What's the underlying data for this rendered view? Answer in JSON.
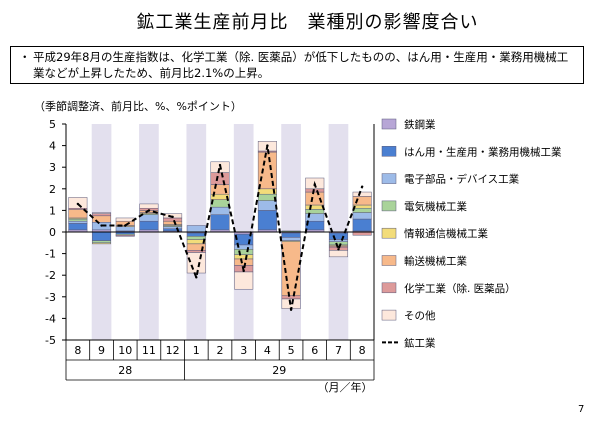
{
  "title": "鉱工業生産前月比　業種別の影響度合い",
  "summary": {
    "bullet": "・",
    "text": "平成29年8月の生産指数は、化学工業（除. 医薬品）が低下したものの、はん用・生産用・業務用機械工業などが上昇したため、前月比2.1%の上昇。"
  },
  "unit_label": "（季節調整済、前月比、%、%ポイント）",
  "page_number": "7",
  "chart_data": {
    "type": "bar",
    "stacked": true,
    "categories": [
      "8",
      "9",
      "10",
      "11",
      "12",
      "1",
      "2",
      "3",
      "4",
      "5",
      "6",
      "7",
      "8"
    ],
    "year_labels": [
      {
        "label": "28",
        "from": 0,
        "to": 4
      },
      {
        "label": "29",
        "from": 5,
        "to": 12
      }
    ],
    "x_unit_label": "（月／年）",
    "ylim": [
      -5,
      5
    ],
    "yticks": [
      5,
      4,
      3,
      2,
      1,
      0,
      -1,
      -2,
      -3,
      -4,
      -5
    ],
    "shaded_columns": [
      1,
      3,
      5,
      7,
      9,
      11
    ],
    "series": [
      {
        "name": "鉄鋼業",
        "color": "#b7a6d6",
        "values": [
          0.1,
          0.1,
          0.05,
          0.1,
          0.05,
          -0.05,
          0.1,
          -0.1,
          0.1,
          -0.05,
          0.1,
          -0.05,
          0.05
        ]
      },
      {
        "name": "はん用・生産用・業務用機械工業",
        "color": "#4a7fd1",
        "values": [
          0.3,
          -0.4,
          -0.1,
          0.4,
          0.1,
          -0.15,
          0.7,
          -0.5,
          0.9,
          -0.2,
          0.4,
          -0.3,
          0.55
        ]
      },
      {
        "name": "電子部品・デバイス工業",
        "color": "#9dbbe8",
        "values": [
          0.1,
          0.35,
          0.2,
          0.3,
          0.1,
          0.3,
          0.35,
          -0.2,
          0.45,
          -0.15,
          0.35,
          -0.1,
          0.3
        ]
      },
      {
        "name": "電気機械工業",
        "color": "#a9d39a",
        "values": [
          0.1,
          -0.1,
          -0.05,
          0.05,
          0.05,
          -0.15,
          0.35,
          -0.25,
          0.3,
          0.05,
          0.2,
          -0.15,
          0.2
        ]
      },
      {
        "name": "情報通信機械工業",
        "color": "#f2dc7a",
        "values": [
          0.05,
          -0.05,
          0.05,
          0.05,
          0.05,
          -0.2,
          0.25,
          -0.2,
          0.25,
          -0.05,
          0.2,
          -0.05,
          0.15
        ]
      },
      {
        "name": "輸送機械工業",
        "color": "#f7b98a",
        "values": [
          0.4,
          0.3,
          0.2,
          0.1,
          0.15,
          -0.3,
          0.45,
          -0.3,
          1.7,
          -2.5,
          0.6,
          -0.05,
          0.4
        ]
      },
      {
        "name": "化学工業（除. 医薬品）",
        "color": "#dd9a9a",
        "values": [
          0.05,
          0.1,
          -0.05,
          0.1,
          0.15,
          -0.1,
          0.55,
          -0.3,
          0.05,
          -0.15,
          0.15,
          -0.15,
          -0.15
        ]
      },
      {
        "name": "その他",
        "color": "#fde8dc",
        "values": [
          0.5,
          0.05,
          0.15,
          0.2,
          0.2,
          -0.95,
          0.5,
          -0.8,
          0.45,
          -0.45,
          0.5,
          -0.3,
          0.2
        ]
      }
    ],
    "line": {
      "name": "鉱工業",
      "color": "#000000",
      "style": "dashed",
      "values": [
        1.3,
        0.3,
        0.3,
        1.0,
        0.7,
        -2.1,
        3.1,
        -1.8,
        4.0,
        -3.6,
        2.2,
        -0.8,
        2.1
      ]
    }
  }
}
